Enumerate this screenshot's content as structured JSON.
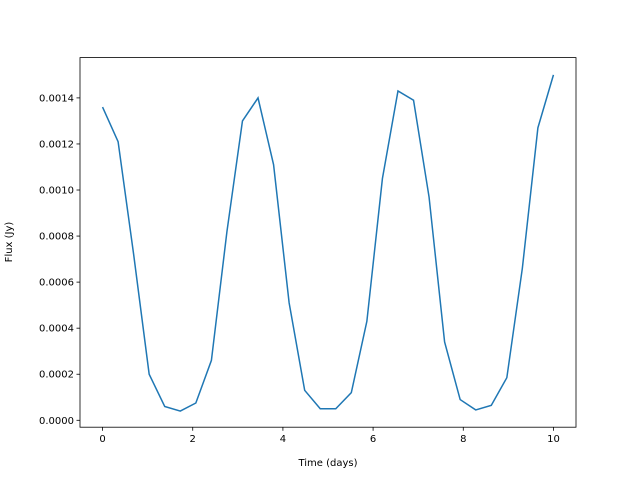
{
  "chart_data": {
    "type": "line",
    "xlabel": "Time (days)",
    "ylabel": "Flux (Jy)",
    "x": [
      0,
      0.345,
      0.69,
      1.034,
      1.379,
      1.724,
      2.069,
      2.414,
      2.759,
      3.103,
      3.448,
      3.793,
      4.138,
      4.483,
      4.828,
      5.172,
      5.517,
      5.862,
      6.207,
      6.552,
      6.897,
      7.241,
      7.586,
      7.931,
      8.276,
      8.621,
      8.966,
      9.31,
      9.655,
      10
    ],
    "series": [
      {
        "color": "#1f77b4",
        "values": [
          0.00136,
          0.00121,
          0.00072,
          0.0002,
          6e-05,
          4e-05,
          7.5e-05,
          0.00026,
          0.00082,
          0.0013,
          0.0014,
          0.00111,
          0.00051,
          0.00013,
          5e-05,
          5e-05,
          0.00012,
          0.00043,
          0.00105,
          0.00143,
          0.00139,
          0.00097,
          0.00034,
          9e-05,
          4.5e-05,
          6.5e-05,
          0.000185,
          0.00066,
          0.00127,
          0.0015
        ]
      }
    ],
    "xlim": [
      -0.5,
      10.5
    ],
    "xticks": [
      0,
      2,
      4,
      6,
      8,
      10
    ],
    "ylim": [
      -3e-05,
      0.001575
    ],
    "yticks": [
      {
        "value": 0,
        "label": "0.0000"
      },
      {
        "value": 0.0002,
        "label": "0.0002"
      },
      {
        "value": 0.0004,
        "label": "0.0004"
      },
      {
        "value": 0.0006,
        "label": "0.0006"
      },
      {
        "value": 0.0008,
        "label": "0.0008"
      },
      {
        "value": 0.001,
        "label": "0.0010"
      },
      {
        "value": 0.0012,
        "label": "0.0012"
      },
      {
        "value": 0.0014,
        "label": "0.0014"
      }
    ]
  }
}
